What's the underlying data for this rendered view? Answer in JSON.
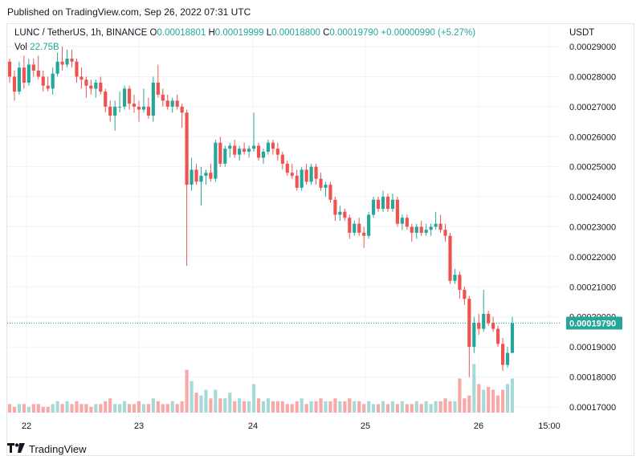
{
  "header": {
    "published": "Published on TradingView.com, Sep 26, 2022 07:31 UTC"
  },
  "legend": {
    "symbol": "LUNC / TetherUS, 1h, BINANCE",
    "o_label": "O",
    "o_value": "0.00018801",
    "h_label": "H",
    "h_value": "0.00019999",
    "l_label": "L",
    "l_value": "0.00018800",
    "c_label": "C",
    "c_value": "0.00019790",
    "change": "+0.00000990 (+5.27%)",
    "vol_label": "Vol",
    "vol_value": "22.75B"
  },
  "currency": "USDT",
  "footer": {
    "brand": "TradingView"
  },
  "colors": {
    "up": "#26a69a",
    "down": "#ef5350",
    "up_vol": "#a7dad6",
    "down_vol": "#f7a9a7",
    "grid": "#f0f3fa",
    "last_price_bg": "#26a69a"
  },
  "chart_data": {
    "type": "candlestick",
    "y_ticks": [
      "0.00017000",
      "0.00018000",
      "0.00019000",
      "0.00020000",
      "0.00021000",
      "0.00022000",
      "0.00023000",
      "0.00024000",
      "0.00025000",
      "0.00026000",
      "0.00027000",
      "0.00028000",
      "0.00029000"
    ],
    "x_ticks": [
      "22",
      "23",
      "24",
      "25",
      "26",
      "15:00"
    ],
    "last_price": "0.00019790",
    "ylim": [
      0.0001665,
      0.0002975
    ],
    "candles": [
      [
        0.000285,
        0.000286,
        0.000278,
        0.00028
      ],
      [
        0.00028,
        0.000282,
        0.000272,
        0.000275
      ],
      [
        0.000275,
        0.000285,
        0.000274,
        0.000283
      ],
      [
        0.000283,
        0.000287,
        0.000276,
        0.000278
      ],
      [
        0.000278,
        0.000286,
        0.000277,
        0.000284
      ],
      [
        0.000284,
        0.000286,
        0.00028,
        0.000282
      ],
      [
        0.000282,
        0.000287,
        0.000279,
        0.00028
      ],
      [
        0.00028,
        0.000282,
        0.000275,
        0.000277
      ],
      [
        0.000277,
        0.00028,
        0.000275,
        0.000276
      ],
      [
        0.000276,
        0.000283,
        0.000274,
        0.000281
      ],
      [
        0.000281,
        0.000288,
        0.00028,
        0.000285
      ],
      [
        0.000285,
        0.00029,
        0.000282,
        0.000284
      ],
      [
        0.000284,
        0.000289,
        0.000283,
        0.000286
      ],
      [
        0.000286,
        0.000289,
        0.000283,
        0.000285
      ],
      [
        0.000285,
        0.000286,
        0.000278,
        0.00028
      ],
      [
        0.00028,
        0.000283,
        0.000276,
        0.000279
      ],
      [
        0.000279,
        0.00028,
        0.000273,
        0.000277
      ],
      [
        0.000277,
        0.000279,
        0.000274,
        0.000276
      ],
      [
        0.000276,
        0.000279,
        0.000273,
        0.000278
      ],
      [
        0.000278,
        0.00028,
        0.000274,
        0.000275
      ],
      [
        0.000275,
        0.000276,
        0.000268,
        0.00027
      ],
      [
        0.00027,
        0.000272,
        0.000265,
        0.000267
      ],
      [
        0.000267,
        0.000272,
        0.000262,
        0.00027
      ],
      [
        0.00027,
        0.000275,
        0.000268,
        0.00027
      ],
      [
        0.00027,
        0.000277,
        0.000269,
        0.000276
      ],
      [
        0.000276,
        0.000277,
        0.000269,
        0.000271
      ],
      [
        0.000271,
        0.000274,
        0.000268,
        0.00027
      ],
      [
        0.00027,
        0.000272,
        0.000265,
        0.000269
      ],
      [
        0.000269,
        0.000276,
        0.000268,
        0.00027
      ],
      [
        0.00027,
        0.000273,
        0.000266,
        0.000267
      ],
      [
        0.000267,
        0.00028,
        0.000265,
        0.000278
      ],
      [
        0.000278,
        0.000284,
        0.000273,
        0.000274
      ],
      [
        0.000274,
        0.000276,
        0.00027,
        0.000272
      ],
      [
        0.000272,
        0.000274,
        0.000269,
        0.00027
      ],
      [
        0.00027,
        0.000273,
        0.000268,
        0.000272
      ],
      [
        0.000272,
        0.000274,
        0.000269,
        0.00027
      ],
      [
        0.00027,
        0.000271,
        0.000263,
        0.000268
      ],
      [
        0.000268,
        0.000269,
        0.000217,
        0.000244
      ],
      [
        0.000244,
        0.000253,
        0.000242,
        0.000249
      ],
      [
        0.000249,
        0.000251,
        0.000244,
        0.000245
      ],
      [
        0.000245,
        0.00025,
        0.000237,
        0.000247
      ],
      [
        0.000247,
        0.000249,
        0.000244,
        0.000248
      ],
      [
        0.000248,
        0.000251,
        0.000245,
        0.000246
      ],
      [
        0.000246,
        0.000259,
        0.000245,
        0.000258
      ],
      [
        0.000258,
        0.00026,
        0.00025,
        0.000251
      ],
      [
        0.000251,
        0.000257,
        0.00025,
        0.000256
      ],
      [
        0.000256,
        0.000258,
        0.000253,
        0.000257
      ],
      [
        0.000257,
        0.000259,
        0.000253,
        0.000254
      ],
      [
        0.000254,
        0.000257,
        0.000252,
        0.000256
      ],
      [
        0.000256,
        0.000258,
        0.000254,
        0.000255
      ],
      [
        0.000255,
        0.000257,
        0.000253,
        0.000256
      ],
      [
        0.000256,
        0.000268,
        0.000255,
        0.000257
      ],
      [
        0.000257,
        0.000258,
        0.000252,
        0.000253
      ],
      [
        0.000253,
        0.000256,
        0.000251,
        0.000255
      ],
      [
        0.000255,
        0.000259,
        0.000254,
        0.000258
      ],
      [
        0.000258,
        0.000259,
        0.000254,
        0.000256
      ],
      [
        0.000256,
        0.000258,
        0.000252,
        0.000254
      ],
      [
        0.000254,
        0.000255,
        0.000249,
        0.000251
      ],
      [
        0.000251,
        0.000252,
        0.000247,
        0.000248
      ],
      [
        0.000248,
        0.000251,
        0.000246,
        0.000247
      ],
      [
        0.000247,
        0.000249,
        0.000242,
        0.000243
      ],
      [
        0.000243,
        0.00025,
        0.000242,
        0.000249
      ],
      [
        0.000249,
        0.000251,
        0.000244,
        0.000245
      ],
      [
        0.000245,
        0.000251,
        0.000244,
        0.00025
      ],
      [
        0.00025,
        0.000251,
        0.000244,
        0.000246
      ],
      [
        0.000246,
        0.000248,
        0.000242,
        0.000243
      ],
      [
        0.000243,
        0.000245,
        0.00024,
        0.000244
      ],
      [
        0.000244,
        0.000245,
        0.000238,
        0.000239
      ],
      [
        0.000239,
        0.00024,
        0.000232,
        0.000234
      ],
      [
        0.000234,
        0.000237,
        0.000232,
        0.000235
      ],
      [
        0.000235,
        0.000236,
        0.000232,
        0.000233
      ],
      [
        0.000233,
        0.000234,
        0.000226,
        0.000228
      ],
      [
        0.000228,
        0.000232,
        0.000227,
        0.000231
      ],
      [
        0.000231,
        0.000233,
        0.000227,
        0.000228
      ],
      [
        0.000228,
        0.00023,
        0.000223,
        0.000227
      ],
      [
        0.000227,
        0.000235,
        0.000226,
        0.000234
      ],
      [
        0.000234,
        0.00024,
        0.000233,
        0.000239
      ],
      [
        0.000239,
        0.00024,
        0.000235,
        0.000236
      ],
      [
        0.000236,
        0.000242,
        0.000235,
        0.00024
      ],
      [
        0.00024,
        0.000241,
        0.000235,
        0.000236
      ],
      [
        0.000236,
        0.000241,
        0.000235,
        0.000239
      ],
      [
        0.000239,
        0.00024,
        0.00023,
        0.000231
      ],
      [
        0.000231,
        0.000234,
        0.000229,
        0.000233
      ],
      [
        0.000233,
        0.000234,
        0.000229,
        0.00023
      ],
      [
        0.00023,
        0.000231,
        0.000225,
        0.000228
      ],
      [
        0.000228,
        0.000231,
        0.000226,
        0.00023
      ],
      [
        0.00023,
        0.000232,
        0.000227,
        0.000228
      ],
      [
        0.000228,
        0.000231,
        0.000227,
        0.000229
      ],
      [
        0.000229,
        0.000231,
        0.000227,
        0.00023
      ],
      [
        0.00023,
        0.000235,
        0.000229,
        0.000231
      ],
      [
        0.000231,
        0.000234,
        0.000228,
        0.000229
      ],
      [
        0.000229,
        0.000231,
        0.000225,
        0.000227
      ],
      [
        0.000227,
        0.000228,
        0.000211,
        0.000212
      ],
      [
        0.000212,
        0.000216,
        0.000211,
        0.000214
      ],
      [
        0.000214,
        0.000215,
        0.000206,
        0.000209
      ],
      [
        0.000209,
        0.00021,
        0.000204,
        0.000206
      ],
      [
        0.000206,
        0.000207,
        0.00018,
        0.00019
      ],
      [
        0.00019,
        0.0002,
        0.000188,
        0.000198
      ],
      [
        0.000198,
        0.000201,
        0.000194,
        0.000196
      ],
      [
        0.000196,
        0.000209,
        0.000195,
        0.000201
      ],
      [
        0.000201,
        0.000202,
        0.000197,
        0.000198
      ],
      [
        0.000198,
        0.0002,
        0.000195,
        0.000196
      ],
      [
        0.000196,
        0.000197,
        0.00019,
        0.000191
      ],
      [
        0.000191,
        0.000193,
        0.000182,
        0.000184
      ],
      [
        0.000184,
        0.00019,
        0.000183,
        0.000188
      ],
      [
        0.000188,
        0.0002,
        0.000188,
        0.0001979
      ]
    ],
    "volume_ylim": [
      0,
      45
    ],
    "volumes": [
      3,
      2,
      3,
      3,
      2,
      3,
      3,
      2,
      2,
      3,
      4,
      3,
      4,
      3,
      4,
      3,
      3,
      2,
      3,
      3,
      4,
      5,
      3,
      3,
      4,
      3,
      3,
      4,
      3,
      3,
      5,
      4,
      3,
      3,
      4,
      3,
      4,
      15,
      11,
      7,
      6,
      8,
      5,
      8,
      5,
      5,
      7,
      4,
      5,
      4,
      4,
      10,
      5,
      4,
      5,
      4,
      4,
      4,
      3,
      3,
      4,
      5,
      3,
      4,
      4,
      5,
      4,
      4,
      5,
      4,
      4,
      5,
      4,
      4,
      3,
      4,
      3,
      3,
      4,
      3,
      4,
      3,
      4,
      3,
      3,
      4,
      3,
      4,
      3,
      4,
      4,
      5,
      4,
      4,
      12,
      5,
      6,
      17,
      10,
      8,
      9,
      8,
      6,
      8,
      10,
      12,
      13
    ]
  }
}
